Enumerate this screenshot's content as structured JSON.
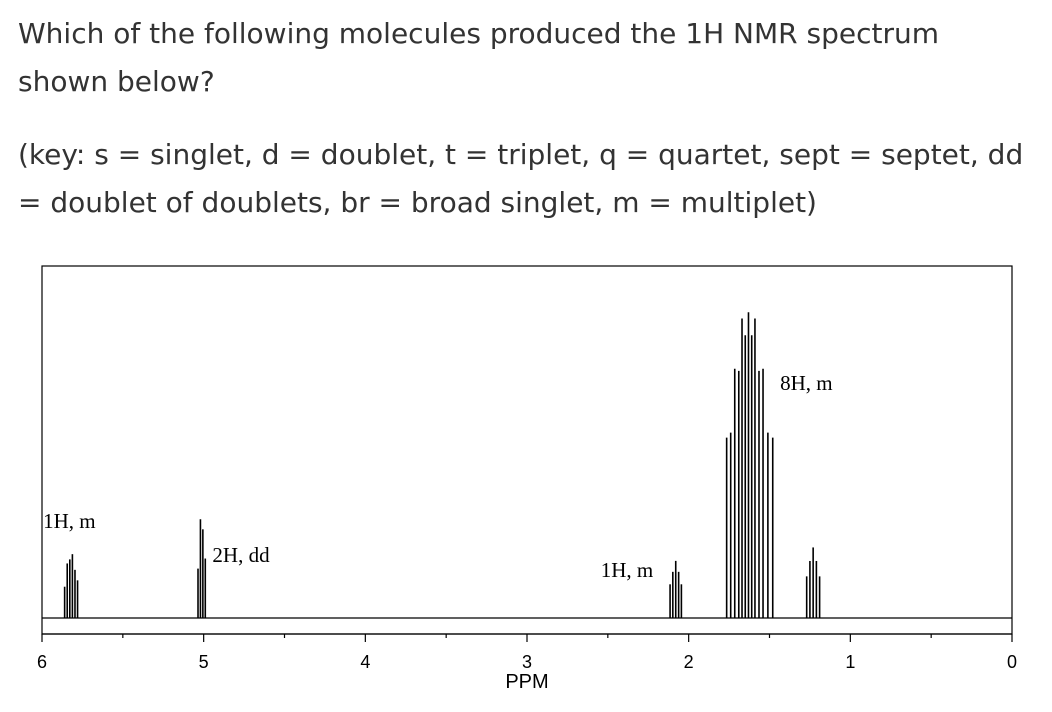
{
  "question": {
    "prompt": "Which of the following molecules produced the 1H NMR spectrum shown below?",
    "key": "(key: s = singlet, d = doublet, t = triplet, q = quartet, sept = septet, dd = doublet of doublets, br = broad singlet, m = multiplet)"
  },
  "chart_data": {
    "type": "line",
    "title": "",
    "xlabel": "PPM",
    "ylabel": "",
    "xlim": [
      6,
      0
    ],
    "x_reversed": true,
    "grid": false,
    "ticks": [
      6,
      5,
      4,
      3,
      2,
      1,
      0
    ],
    "tick_labels": [
      "6",
      "5",
      "4",
      "3",
      "2",
      "1",
      "0"
    ],
    "peaks": [
      {
        "label": "1H, m",
        "center": 5.82,
        "height": 0.19,
        "lines": [
          -0.04,
          -0.024,
          -0.008,
          0.008,
          0.024,
          0.04
        ]
      },
      {
        "label": "2H, dd",
        "center": 5.02,
        "height": 0.3,
        "lines": [
          -0.03,
          -0.015,
          0.0,
          0.015
        ]
      },
      {
        "label": "1H, m",
        "center": 2.08,
        "height": 0.17,
        "lines": [
          -0.035,
          -0.018,
          0.0,
          0.018,
          0.035
        ]
      },
      {
        "label": "8H, m",
        "center": 1.62,
        "height": 0.91,
        "lines": [
          -0.14,
          -0.11,
          -0.08,
          -0.055,
          -0.03,
          -0.01,
          0.01,
          0.03,
          0.05,
          0.07,
          0.095,
          0.12,
          0.145
        ]
      },
      {
        "label": "",
        "center": 1.23,
        "height": 0.21,
        "lines": [
          -0.04,
          -0.02,
          0.0,
          0.02,
          0.04
        ]
      }
    ]
  }
}
